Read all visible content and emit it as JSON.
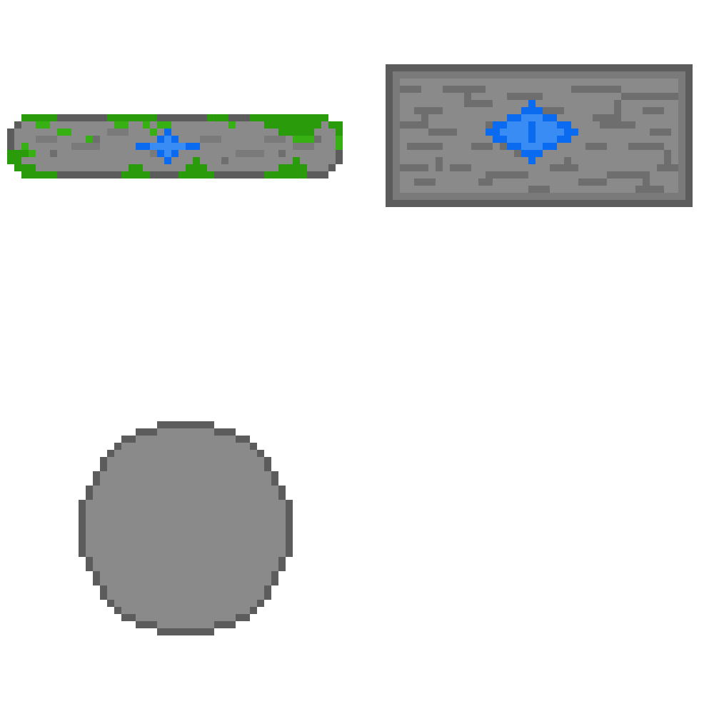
{
  "sprite_sheet": {
    "background": "#ffffff",
    "palette": {
      "stone_dark": "#5c5c5c",
      "stone_mid": "#7a7a7a",
      "stone_light": "#8a8a8a",
      "crack": "#6e6e6e",
      "moss": "#2a9b0a",
      "moss_light": "#36b012",
      "gem_dark": "#0a6bf0",
      "gem_light": "#3a8cf5"
    },
    "sprites": [
      {
        "name": "mossy-stone-platform",
        "moss": true,
        "gem": true
      },
      {
        "name": "stone-block-with-gem",
        "moss": false,
        "gem": true
      },
      {
        "name": "round-stone-boulder",
        "moss": false,
        "gem": false
      }
    ]
  }
}
